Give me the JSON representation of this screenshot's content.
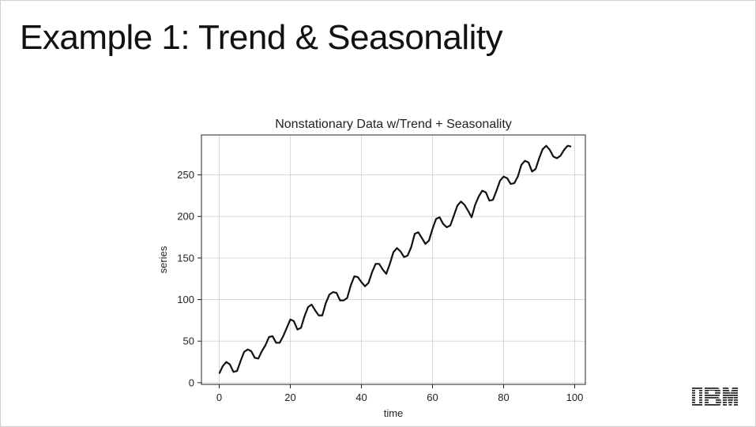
{
  "slide": {
    "title": "Example 1: Trend & Seasonality",
    "logo_text": "IBM"
  },
  "chart_data": {
    "type": "line",
    "title": "Nonstationary Data w/Trend + Seasonality",
    "xlabel": "time",
    "ylabel": "series",
    "xlim": [
      -5,
      103
    ],
    "ylim": [
      -2,
      298
    ],
    "xticks": [
      0,
      20,
      40,
      60,
      80,
      100
    ],
    "yticks": [
      0,
      50,
      100,
      150,
      200,
      250
    ],
    "grid": true,
    "line_color": "#111111",
    "series": [
      {
        "x": [
          0,
          1,
          2,
          3,
          4,
          5,
          6,
          7,
          8,
          9,
          10,
          11,
          12,
          13,
          14,
          15,
          16,
          17,
          18,
          19,
          20,
          21,
          22,
          23,
          24,
          25,
          26,
          27,
          28,
          29,
          30,
          31,
          32,
          33,
          34,
          35,
          36,
          37,
          38,
          39,
          40,
          41,
          42,
          43,
          44,
          45,
          46,
          47,
          48,
          49,
          50,
          51,
          52,
          53,
          54,
          55,
          56,
          57,
          58,
          59,
          60,
          61,
          62,
          63,
          64,
          65,
          66,
          67,
          68,
          69,
          70,
          71,
          72,
          73,
          74,
          75,
          76,
          77,
          78,
          79,
          80,
          81,
          82,
          83,
          84,
          85,
          86,
          87,
          88,
          89,
          90,
          91,
          92,
          93,
          94,
          95,
          96,
          97,
          98,
          99
        ],
        "values": [
          11,
          20,
          25,
          22,
          13,
          14,
          26,
          37,
          40,
          38,
          30,
          29,
          38,
          45,
          55,
          56,
          48,
          48,
          56,
          66,
          76,
          74,
          64,
          66,
          80,
          91,
          94,
          87,
          81,
          81,
          96,
          106,
          109,
          108,
          99,
          99,
          102,
          117,
          128,
          127,
          121,
          116,
          120,
          133,
          143,
          143,
          136,
          131,
          143,
          157,
          162,
          158,
          151,
          153,
          163,
          179,
          181,
          174,
          167,
          171,
          185,
          197,
          199,
          191,
          187,
          189,
          201,
          213,
          218,
          214,
          207,
          199,
          214,
          224,
          231,
          229,
          219,
          220,
          231,
          243,
          248,
          246,
          239,
          240,
          248,
          262,
          267,
          265,
          254,
          257,
          270,
          281,
          285,
          280,
          272,
          270,
          273,
          280,
          285,
          284
        ]
      }
    ]
  }
}
